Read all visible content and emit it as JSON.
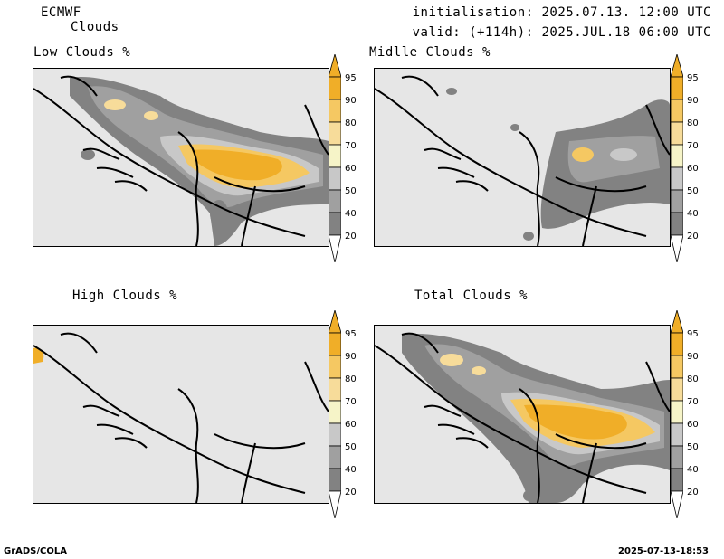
{
  "header": {
    "model": "ECMWF",
    "product": "Clouds",
    "init": "initialisation: 2025.07.13. 12:00 UTC",
    "valid": "valid: (+114h): 2025.JUL.18 06:00 UTC"
  },
  "panels": [
    {
      "title": "Low Clouds %",
      "field": "low"
    },
    {
      "title": "Midlle Clouds %",
      "field": "mid"
    },
    {
      "title": "High Clouds %",
      "field": "high"
    },
    {
      "title": "Total Clouds %",
      "field": "total"
    }
  ],
  "colorbar": {
    "levels": [
      "95",
      "90",
      "80",
      "70",
      "60",
      "50",
      "40",
      "20"
    ],
    "colors": [
      "#f0ae28",
      "#f5c862",
      "#f7dc9a",
      "#f6f4c8",
      "#c8c8c8",
      "#a0a0a0",
      "#828282",
      "#505050"
    ],
    "background": "#e6e6e6"
  },
  "footer": {
    "left": "GrADS/COLA",
    "right": "2025-07-13-18:53"
  }
}
